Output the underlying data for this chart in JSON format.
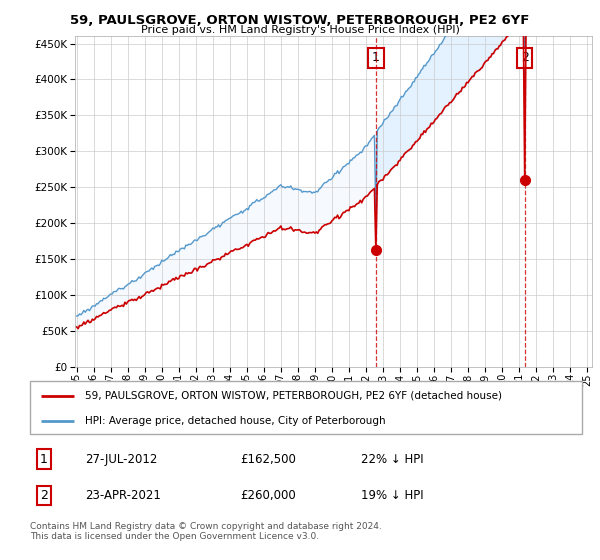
{
  "title": "59, PAULSGROVE, ORTON WISTOW, PETERBOROUGH, PE2 6YF",
  "subtitle": "Price paid vs. HM Land Registry's House Price Index (HPI)",
  "legend_line1": "59, PAULSGROVE, ORTON WISTOW, PETERBOROUGH, PE2 6YF (detached house)",
  "legend_line2": "HPI: Average price, detached house, City of Peterborough",
  "annotation1_date": "27-JUL-2012",
  "annotation1_price": "£162,500",
  "annotation1_hpi": "22% ↓ HPI",
  "annotation2_date": "23-APR-2021",
  "annotation2_price": "£260,000",
  "annotation2_hpi": "19% ↓ HPI",
  "footer": "Contains HM Land Registry data © Crown copyright and database right 2024.\nThis data is licensed under the Open Government Licence v3.0.",
  "house_color": "#cc0000",
  "hpi_color": "#5599cc",
  "fill_color": "#ddeeff",
  "vline_color": "#cc0000",
  "ylim": [
    0,
    460000
  ],
  "yticks": [
    0,
    50000,
    100000,
    150000,
    200000,
    250000,
    300000,
    350000,
    400000,
    450000
  ],
  "background_color": "#ffffff",
  "grid_color": "#cccccc"
}
